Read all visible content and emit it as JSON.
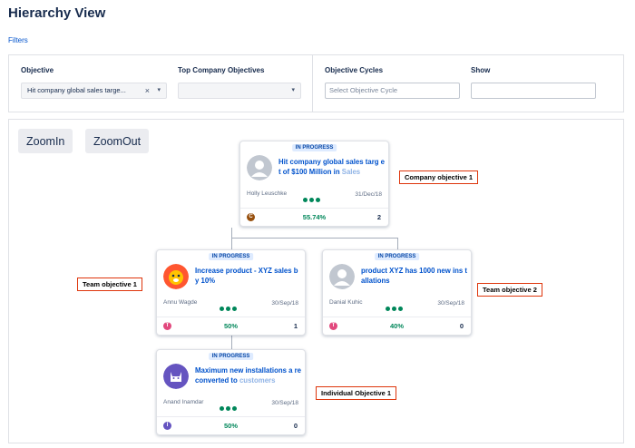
{
  "page": {
    "title": "Hierarchy View",
    "filters_link": "Filters"
  },
  "filters": {
    "objective": {
      "label": "Objective",
      "value": "Hit company global sales targe...",
      "clear": "×",
      "chevron": "▾"
    },
    "top_company": {
      "label": "Top Company Objectives",
      "value": "",
      "chevron": "▾"
    },
    "cycles": {
      "label": "Objective Cycles",
      "placeholder": "Select Objective Cycle"
    },
    "show": {
      "label": "Show",
      "value": ""
    }
  },
  "zoom": {
    "in": "ZoomIn",
    "out": "ZoomOut"
  },
  "cards": {
    "company": {
      "status": "IN PROGRESS",
      "title_main": "Hit company global sales targ et of $100 Million in ",
      "title_fade": "Sales",
      "owner": "Holly Leuschke",
      "date": "31/Dec/18",
      "icon_letter": "C",
      "icon_color": "#974f0c",
      "percent": "55.74%",
      "count": "2"
    },
    "team1": {
      "status": "IN PROGRESS",
      "title_main": "Increase product - XYZ sales b y 10%",
      "title_fade": "",
      "owner": "Annu Wagde",
      "date": "30/Sep/18",
      "icon_letter": "T",
      "icon_color": "#e2487d",
      "percent": "50%",
      "count": "1"
    },
    "team2": {
      "status": "IN PROGRESS",
      "title_main": "product XYZ has 1000 new ins tallations",
      "title_fade": "",
      "owner": "Danial Kuhic",
      "date": "30/Sep/18",
      "icon_letter": "T",
      "icon_color": "#e2487d",
      "percent": "40%",
      "count": "0"
    },
    "individual": {
      "status": "IN PROGRESS",
      "title_main": "Maximum new installations a re converted to ",
      "title_fade": "customers",
      "owner": "Anand Inamdar",
      "date": "30/Sep/18",
      "icon_letter": "I",
      "icon_color": "#6554c0",
      "percent": "50%",
      "count": "0"
    }
  },
  "annotations": {
    "company": "Company objective 1",
    "team1": "Team objective 1",
    "team2": "Team objective 2",
    "individual": "Individual Objective 1"
  },
  "colors": {
    "accent": "#0052cc",
    "progress": "#00875a",
    "annotation_border": "#de350b"
  }
}
